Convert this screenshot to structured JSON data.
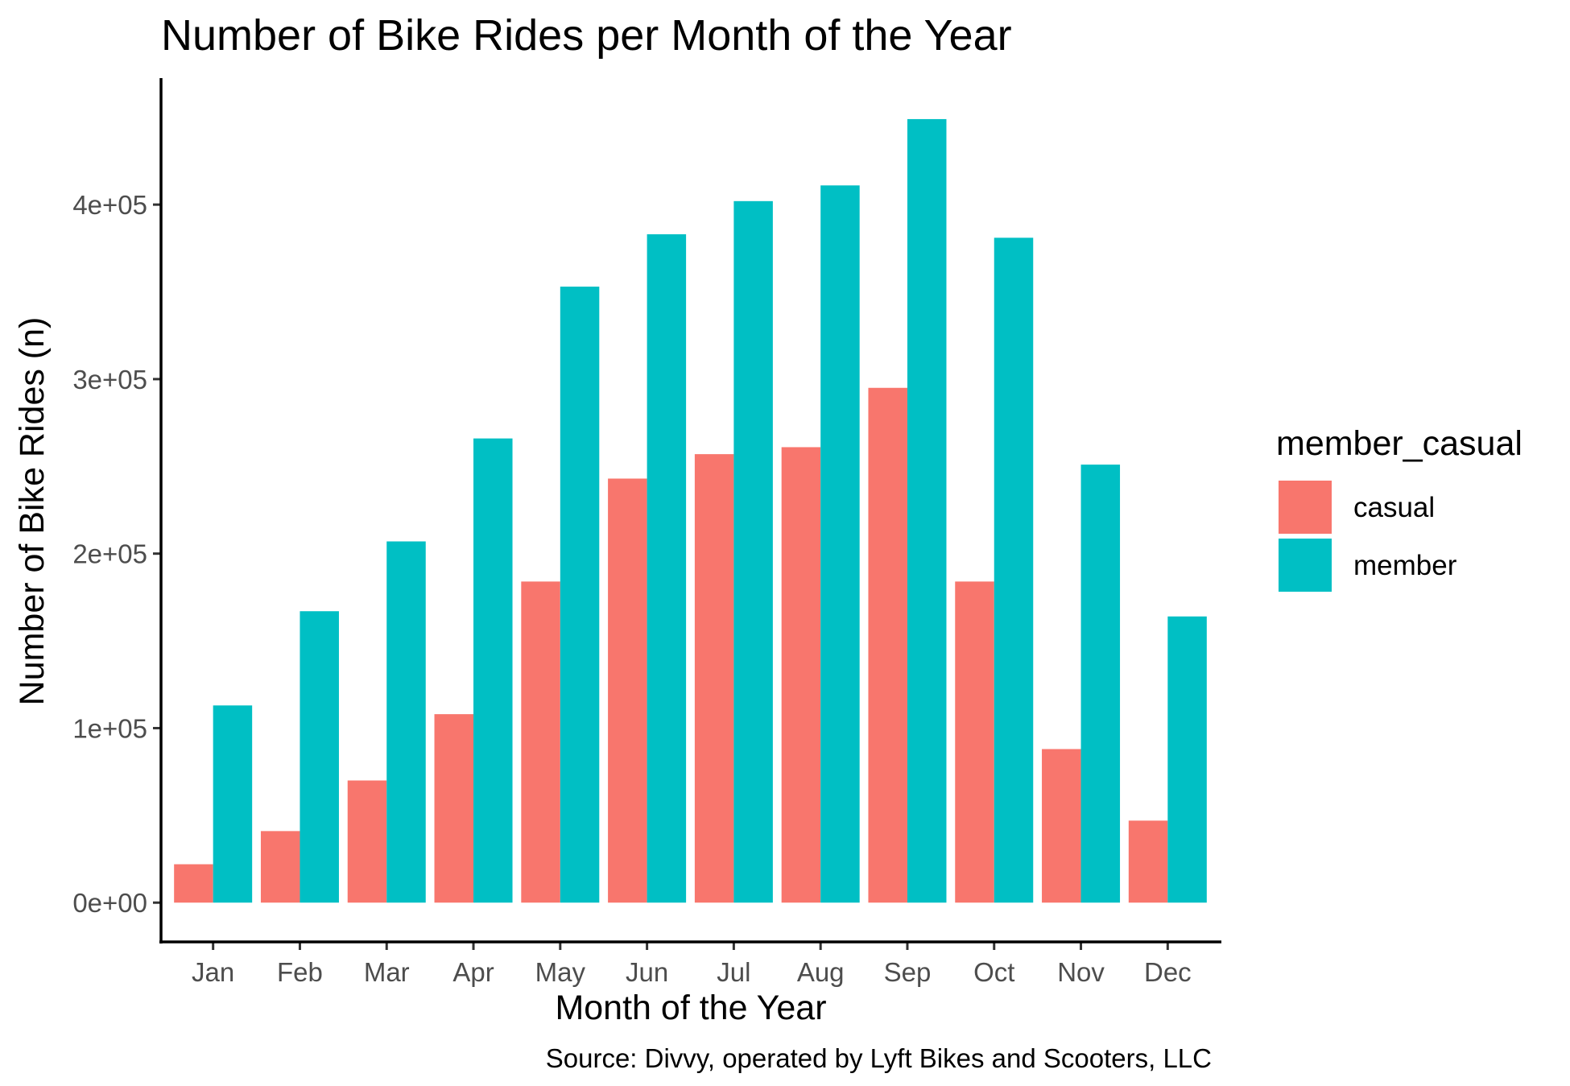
{
  "chart_data": {
    "type": "bar",
    "title": "Number of Bike Rides per Month of the Year",
    "xlabel": "Month of the Year",
    "ylabel": "Number of Bike Rides (n)",
    "caption": "Source: Divvy, operated by Lyft Bikes and Scooters, LLC",
    "categories": [
      "Jan",
      "Feb",
      "Mar",
      "Apr",
      "May",
      "Jun",
      "Jul",
      "Aug",
      "Sep",
      "Oct",
      "Nov",
      "Dec"
    ],
    "series": [
      {
        "name": "casual",
        "color": "#F8766D",
        "values": [
          22000,
          41000,
          70000,
          108000,
          184000,
          243000,
          257000,
          261000,
          295000,
          184000,
          88000,
          47000
        ]
      },
      {
        "name": "member",
        "color": "#00BFC4",
        "values": [
          113000,
          167000,
          207000,
          266000,
          353000,
          383000,
          402000,
          411000,
          449000,
          381000,
          251000,
          164000
        ]
      }
    ],
    "yticks": [
      0,
      100000,
      200000,
      300000,
      400000
    ],
    "ytick_labels": [
      "0e+00",
      "1e+05",
      "2e+05",
      "3e+05",
      "4e+05"
    ],
    "ylim": [
      -22500,
      472500
    ],
    "legend": {
      "title": "member_casual",
      "position": "right"
    },
    "grid": false
  }
}
